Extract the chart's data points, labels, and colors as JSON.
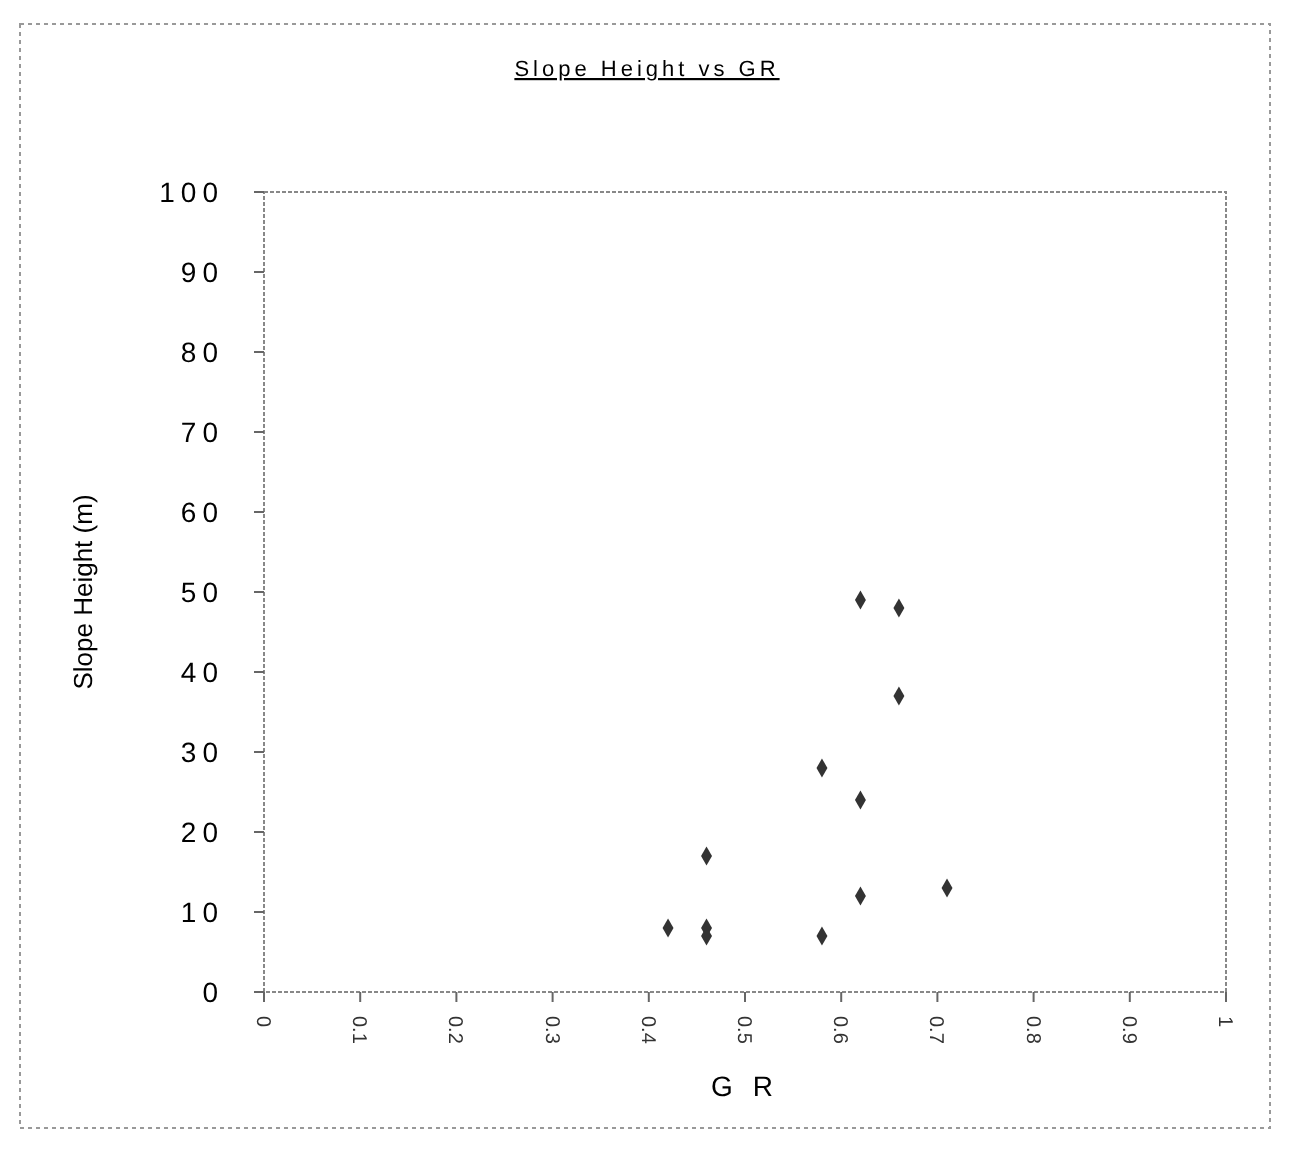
{
  "chart_data": {
    "type": "scatter",
    "title": "Slope Height vs GR",
    "xlabel": "G R",
    "ylabel": "Slope Height (m)",
    "x": [
      0.62,
      0.66,
      0.66,
      0.58,
      0.62,
      0.46,
      0.62,
      0.71,
      0.42,
      0.46,
      0.46,
      0.58
    ],
    "values": [
      49,
      48,
      37,
      28,
      24,
      17,
      12,
      13,
      8,
      8,
      7,
      7
    ],
    "color": "#333333",
    "marker": "diamond",
    "xlim": [
      0,
      1
    ],
    "xticks": [
      0,
      0.1,
      0.2,
      0.3,
      0.4,
      0.5,
      0.6,
      0.7,
      0.8,
      0.9,
      1
    ],
    "ylim": [
      0,
      100
    ],
    "yticks": [
      0,
      10,
      20,
      30,
      40,
      50,
      60,
      70,
      80,
      90,
      100
    ],
    "grid": false
  }
}
